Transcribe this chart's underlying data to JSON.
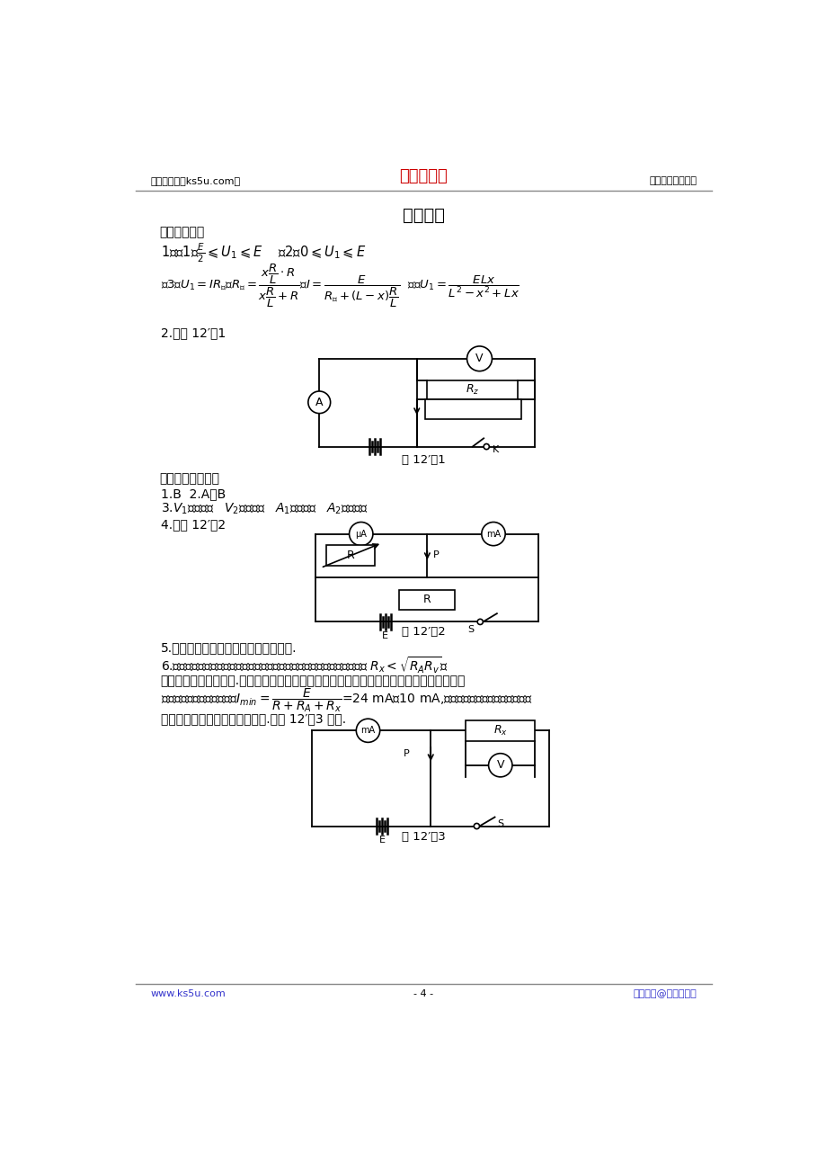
{
  "page_width": 9.2,
  "page_height": 13.02,
  "bg_color": "#ffffff",
  "header_left": "高考资源网（ks5u.com）",
  "header_center": "高考资源网",
  "header_right": "您身边的高考专家",
  "header_center_color": "#cc0000",
  "footer_left": "www.ks5u.com",
  "footer_center": "- 4 -",
  "footer_right": "版权所有@高考资源网",
  "footer_color": "#3333cc",
  "title": "参考答案",
  "section1": "［难点磁场］",
  "section2": "［斩灭难点训练］"
}
